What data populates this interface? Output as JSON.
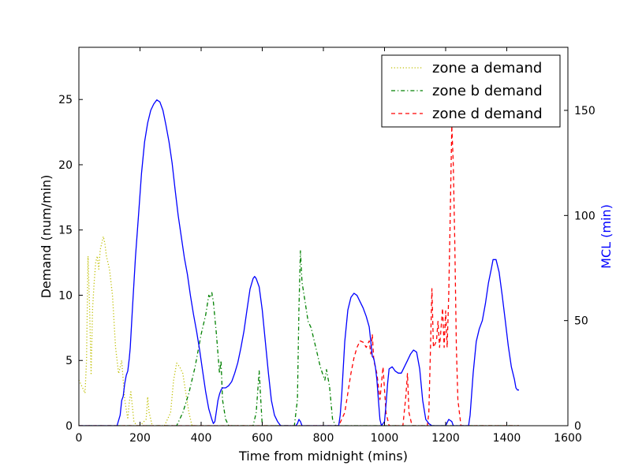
{
  "chart_data": {
    "type": "line",
    "xlabel": "Time from midnight (mins)",
    "ylabel_left": "Demand (num/min)",
    "ylabel_right": "MCL (min)",
    "ylabel_right_color": "#0000ff",
    "xlim": [
      0,
      1600
    ],
    "ylim_left": [
      0,
      29
    ],
    "ylim_right": [
      0,
      180
    ],
    "xticks": [
      0,
      200,
      400,
      600,
      800,
      1000,
      1200,
      1400,
      1600
    ],
    "yticks_left": [
      0,
      5,
      10,
      15,
      20,
      25
    ],
    "yticks_right": [
      0,
      50,
      100,
      150
    ],
    "grid": false,
    "legend_position": "top-right",
    "series": [
      {
        "name": "zone a demand",
        "axis": "left",
        "color": "#bfbf00",
        "style": "dotted",
        "points": [
          [
            0,
            3.5
          ],
          [
            10,
            3.0
          ],
          [
            20,
            2.5
          ],
          [
            25,
            5
          ],
          [
            30,
            13
          ],
          [
            35,
            9
          ],
          [
            40,
            4
          ],
          [
            45,
            9
          ],
          [
            50,
            11
          ],
          [
            55,
            12.5
          ],
          [
            60,
            13
          ],
          [
            65,
            12
          ],
          [
            70,
            13.5
          ],
          [
            75,
            14
          ],
          [
            80,
            14.5
          ],
          [
            85,
            14
          ],
          [
            90,
            13
          ],
          [
            100,
            12
          ],
          [
            110,
            10
          ],
          [
            120,
            6
          ],
          [
            130,
            4
          ],
          [
            140,
            5
          ],
          [
            150,
            2
          ],
          [
            160,
            0.5
          ],
          [
            165,
            1.8
          ],
          [
            170,
            2.6
          ],
          [
            175,
            1.5
          ],
          [
            180,
            0.3
          ],
          [
            190,
            0
          ],
          [
            200,
            0
          ],
          [
            220,
            0.5
          ],
          [
            225,
            2.2
          ],
          [
            230,
            1
          ],
          [
            240,
            0
          ],
          [
            280,
            0
          ],
          [
            300,
            1
          ],
          [
            310,
            3.5
          ],
          [
            320,
            4.8
          ],
          [
            330,
            4.5
          ],
          [
            340,
            4
          ],
          [
            350,
            2.5
          ],
          [
            360,
            1
          ],
          [
            370,
            0
          ],
          [
            1440,
            0
          ]
        ]
      },
      {
        "name": "zone b demand",
        "axis": "left",
        "color": "#008000",
        "style": "dashdot",
        "points": [
          [
            0,
            0
          ],
          [
            320,
            0
          ],
          [
            340,
            1
          ],
          [
            360,
            2.5
          ],
          [
            380,
            4.5
          ],
          [
            400,
            7
          ],
          [
            415,
            8.5
          ],
          [
            425,
            10
          ],
          [
            430,
            9.8
          ],
          [
            435,
            10.2
          ],
          [
            440,
            9.5
          ],
          [
            450,
            7
          ],
          [
            460,
            4
          ],
          [
            465,
            5
          ],
          [
            470,
            2
          ],
          [
            480,
            0.5
          ],
          [
            490,
            0
          ],
          [
            570,
            0
          ],
          [
            580,
            1
          ],
          [
            590,
            4.2
          ],
          [
            595,
            2
          ],
          [
            600,
            0
          ],
          [
            705,
            0
          ],
          [
            715,
            2
          ],
          [
            720,
            9
          ],
          [
            725,
            13.4
          ],
          [
            730,
            11
          ],
          [
            740,
            9.5
          ],
          [
            750,
            8
          ],
          [
            760,
            7.5
          ],
          [
            770,
            6.5
          ],
          [
            780,
            5.5
          ],
          [
            790,
            4.5
          ],
          [
            800,
            3.8
          ],
          [
            805,
            3.5
          ],
          [
            810,
            4.3
          ],
          [
            820,
            3
          ],
          [
            830,
            0.5
          ],
          [
            840,
            0
          ],
          [
            1440,
            0
          ]
        ]
      },
      {
        "name": "zone d demand",
        "axis": "left",
        "color": "#ff0000",
        "style": "dashed",
        "points": [
          [
            0,
            0
          ],
          [
            850,
            0
          ],
          [
            860,
            0.5
          ],
          [
            870,
            1
          ],
          [
            880,
            2.5
          ],
          [
            890,
            4
          ],
          [
            900,
            5.2
          ],
          [
            910,
            6
          ],
          [
            920,
            6.5
          ],
          [
            930,
            6.4
          ],
          [
            940,
            6
          ],
          [
            950,
            6.5
          ],
          [
            955,
            5.5
          ],
          [
            960,
            7
          ],
          [
            965,
            5
          ],
          [
            975,
            4
          ],
          [
            985,
            2
          ],
          [
            995,
            4.5
          ],
          [
            1005,
            1
          ],
          [
            1015,
            0
          ],
          [
            1060,
            0
          ],
          [
            1070,
            2.3
          ],
          [
            1075,
            4
          ],
          [
            1080,
            1
          ],
          [
            1090,
            0
          ],
          [
            1140,
            0
          ],
          [
            1145,
            1
          ],
          [
            1150,
            5.5
          ],
          [
            1155,
            10.5
          ],
          [
            1160,
            6
          ],
          [
            1170,
            6.5
          ],
          [
            1175,
            8
          ],
          [
            1180,
            6
          ],
          [
            1190,
            9
          ],
          [
            1195,
            6
          ],
          [
            1200,
            8.8
          ],
          [
            1205,
            6
          ],
          [
            1210,
            10
          ],
          [
            1215,
            16
          ],
          [
            1220,
            23
          ],
          [
            1225,
            20
          ],
          [
            1230,
            14
          ],
          [
            1235,
            6
          ],
          [
            1240,
            2
          ],
          [
            1250,
            0
          ],
          [
            1440,
            0
          ]
        ]
      },
      {
        "name": "MCL",
        "axis": "right",
        "color": "#0000ff",
        "style": "solid",
        "points": [
          [
            0,
            0
          ],
          [
            125,
            0
          ],
          [
            135,
            5
          ],
          [
            140,
            12
          ],
          [
            145,
            14
          ],
          [
            150,
            20
          ],
          [
            155,
            24
          ],
          [
            160,
            26
          ],
          [
            165,
            32
          ],
          [
            168,
            37
          ],
          [
            175,
            55
          ],
          [
            185,
            80
          ],
          [
            195,
            100
          ],
          [
            205,
            120
          ],
          [
            215,
            135
          ],
          [
            225,
            144
          ],
          [
            235,
            150
          ],
          [
            245,
            153
          ],
          [
            255,
            155
          ],
          [
            265,
            154
          ],
          [
            275,
            150
          ],
          [
            285,
            143
          ],
          [
            295,
            135
          ],
          [
            305,
            125
          ],
          [
            315,
            112
          ],
          [
            325,
            100
          ],
          [
            335,
            90
          ],
          [
            345,
            80
          ],
          [
            355,
            72
          ],
          [
            365,
            62
          ],
          [
            375,
            53
          ],
          [
            385,
            45
          ],
          [
            395,
            36
          ],
          [
            405,
            26
          ],
          [
            415,
            16
          ],
          [
            425,
            8
          ],
          [
            435,
            3
          ],
          [
            440,
            1
          ],
          [
            445,
            2
          ],
          [
            450,
            7
          ],
          [
            455,
            12
          ],
          [
            460,
            15
          ],
          [
            465,
            17
          ],
          [
            470,
            18
          ],
          [
            480,
            18
          ],
          [
            490,
            19
          ],
          [
            500,
            21
          ],
          [
            510,
            25
          ],
          [
            520,
            30
          ],
          [
            530,
            37
          ],
          [
            540,
            45
          ],
          [
            550,
            55
          ],
          [
            560,
            65
          ],
          [
            570,
            70
          ],
          [
            575,
            71
          ],
          [
            580,
            70
          ],
          [
            590,
            66
          ],
          [
            600,
            55
          ],
          [
            610,
            40
          ],
          [
            620,
            25
          ],
          [
            630,
            12
          ],
          [
            640,
            5
          ],
          [
            650,
            2
          ],
          [
            660,
            0
          ],
          [
            710,
            0
          ],
          [
            715,
            1
          ],
          [
            720,
            3
          ],
          [
            725,
            2
          ],
          [
            730,
            0
          ],
          [
            850,
            0
          ],
          [
            855,
            5
          ],
          [
            860,
            15
          ],
          [
            870,
            40
          ],
          [
            880,
            55
          ],
          [
            890,
            61
          ],
          [
            900,
            63
          ],
          [
            910,
            62
          ],
          [
            920,
            59
          ],
          [
            930,
            56
          ],
          [
            940,
            52
          ],
          [
            950,
            47
          ],
          [
            955,
            40
          ],
          [
            960,
            33
          ],
          [
            965,
            32
          ],
          [
            970,
            28
          ],
          [
            975,
            22
          ],
          [
            980,
            12
          ],
          [
            985,
            3
          ],
          [
            990,
            0
          ],
          [
            1000,
            2
          ],
          [
            1005,
            10
          ],
          [
            1010,
            20
          ],
          [
            1015,
            27
          ],
          [
            1025,
            28
          ],
          [
            1035,
            26
          ],
          [
            1045,
            25
          ],
          [
            1055,
            25
          ],
          [
            1065,
            28
          ],
          [
            1075,
            31
          ],
          [
            1085,
            34
          ],
          [
            1095,
            36
          ],
          [
            1105,
            35
          ],
          [
            1115,
            27
          ],
          [
            1125,
            12
          ],
          [
            1135,
            3
          ],
          [
            1145,
            1
          ],
          [
            1155,
            0
          ],
          [
            1200,
            0
          ],
          [
            1210,
            3
          ],
          [
            1220,
            2
          ],
          [
            1225,
            0
          ],
          [
            1275,
            0
          ],
          [
            1280,
            5
          ],
          [
            1290,
            25
          ],
          [
            1300,
            40
          ],
          [
            1310,
            46
          ],
          [
            1320,
            50
          ],
          [
            1330,
            58
          ],
          [
            1340,
            68
          ],
          [
            1350,
            75
          ],
          [
            1355,
            79
          ],
          [
            1365,
            79
          ],
          [
            1375,
            73
          ],
          [
            1385,
            62
          ],
          [
            1395,
            50
          ],
          [
            1405,
            38
          ],
          [
            1415,
            28
          ],
          [
            1425,
            22
          ],
          [
            1430,
            18
          ],
          [
            1435,
            17
          ],
          [
            1440,
            17
          ]
        ]
      }
    ]
  }
}
